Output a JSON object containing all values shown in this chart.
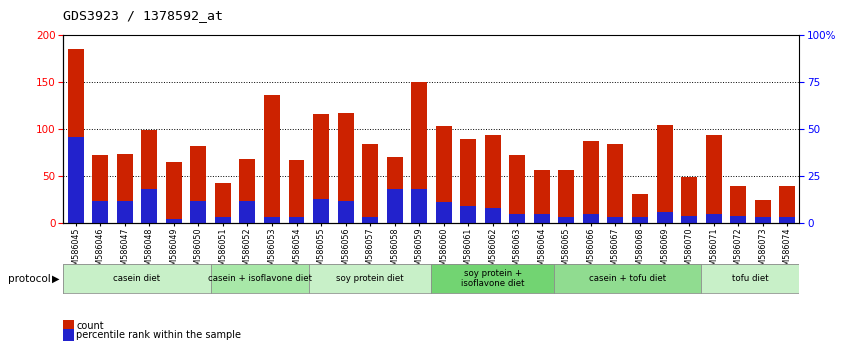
{
  "title": "GDS3923 / 1378592_at",
  "samples": [
    "GSM586045",
    "GSM586046",
    "GSM586047",
    "GSM586048",
    "GSM586049",
    "GSM586050",
    "GSM586051",
    "GSM586052",
    "GSM586053",
    "GSM586054",
    "GSM586055",
    "GSM586056",
    "GSM586057",
    "GSM586058",
    "GSM586059",
    "GSM586060",
    "GSM586061",
    "GSM586062",
    "GSM586063",
    "GSM586064",
    "GSM586065",
    "GSM586066",
    "GSM586067",
    "GSM586068",
    "GSM586069",
    "GSM586070",
    "GSM586071",
    "GSM586072",
    "GSM586073",
    "GSM586074"
  ],
  "count_values": [
    185,
    73,
    74,
    99,
    65,
    82,
    43,
    68,
    137,
    67,
    116,
    117,
    84,
    70,
    150,
    103,
    90,
    94,
    73,
    57,
    57,
    87,
    84,
    31,
    105,
    49,
    94,
    39,
    25,
    39
  ],
  "percentile_values": [
    46,
    12,
    12,
    18,
    2,
    12,
    3,
    12,
    3,
    3,
    13,
    12,
    3,
    18,
    18,
    11,
    9,
    8,
    5,
    5,
    3,
    5,
    3,
    3,
    6,
    4,
    5,
    4,
    3,
    3
  ],
  "groups": [
    {
      "label": "casein diet",
      "start": 0,
      "end": 5,
      "color": "#c8f0c8"
    },
    {
      "label": "casein + isoflavone diet",
      "start": 6,
      "end": 9,
      "color": "#a8e8a8"
    },
    {
      "label": "soy protein diet",
      "start": 10,
      "end": 14,
      "color": "#c8f0c8"
    },
    {
      "label": "soy protein +\nisoflavone diet",
      "start": 15,
      "end": 19,
      "color": "#72d472"
    },
    {
      "label": "casein + tofu diet",
      "start": 20,
      "end": 25,
      "color": "#90dc90"
    },
    {
      "label": "tofu diet",
      "start": 26,
      "end": 29,
      "color": "#c8f0c8"
    }
  ],
  "ylim_left": [
    0,
    200
  ],
  "ylim_right": [
    0,
    100
  ],
  "yticks_left": [
    0,
    50,
    100,
    150,
    200
  ],
  "yticks_right": [
    0,
    25,
    50,
    75,
    100
  ],
  "bar_color": "#cc2200",
  "percentile_color": "#2222cc",
  "background_color": "#ffffff"
}
